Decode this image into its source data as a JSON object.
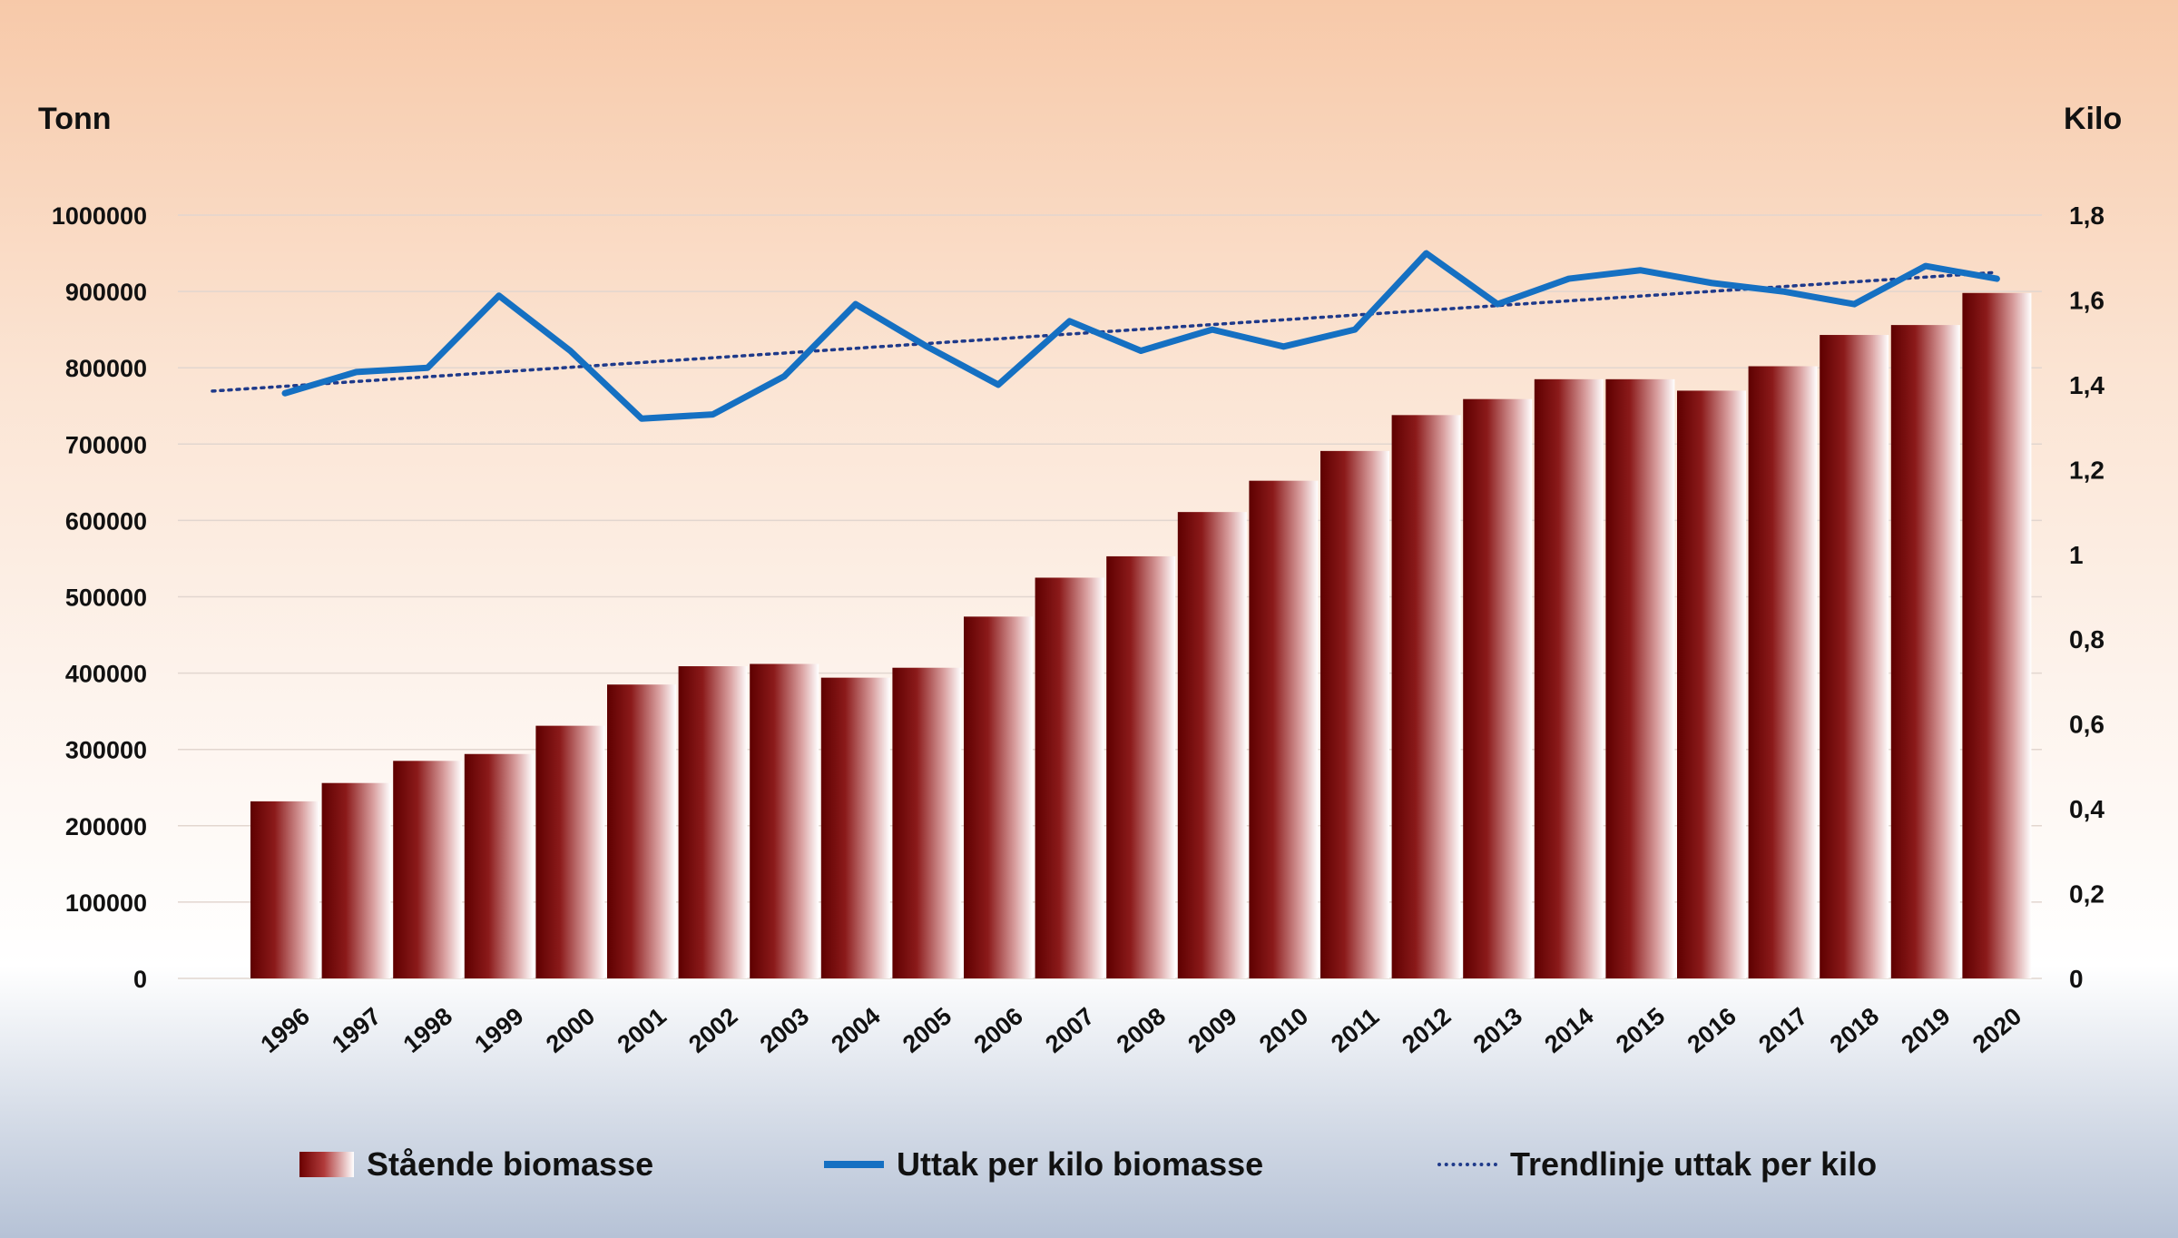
{
  "chart_data": {
    "type": "bar",
    "title": "",
    "ylabel_left": "Tonn",
    "ylabel_right": "Kilo",
    "xlabel": "",
    "categories": [
      "1996",
      "1997",
      "1998",
      "1999",
      "2000",
      "2001",
      "2002",
      "2003",
      "2004",
      "2005",
      "2006",
      "2007",
      "2008",
      "2009",
      "2010",
      "2011",
      "2012",
      "2013",
      "2014",
      "2015",
      "2016",
      "2017",
      "2018",
      "2019",
      "2020"
    ],
    "ylim_left": [
      0,
      1000000
    ],
    "ylim_right": [
      0,
      1.8
    ],
    "left_ticks": [
      "0",
      "100000",
      "200000",
      "300000",
      "400000",
      "500000",
      "600000",
      "700000",
      "800000",
      "900000",
      "1000000"
    ],
    "right_ticks": [
      "0",
      "0,2",
      "0,4",
      "0,6",
      "0,8",
      "1",
      "1,2",
      "1,4",
      "1,6",
      "1,8"
    ],
    "grid": true,
    "legend_position": "bottom",
    "series": [
      {
        "name": "Stående biomasse",
        "kind": "bar",
        "axis": "left",
        "color": "#8b1a1a",
        "values": [
          232000,
          256000,
          285000,
          294000,
          331000,
          385000,
          409000,
          412000,
          394000,
          407000,
          474000,
          525000,
          553000,
          611000,
          652000,
          691000,
          738000,
          759000,
          785000,
          785000,
          770000,
          802000,
          843000,
          856000,
          898000
        ]
      },
      {
        "name": "Uttak per kilo biomasse",
        "kind": "line",
        "axis": "right",
        "color": "#1570c2",
        "values": [
          1.38,
          1.43,
          1.44,
          1.61,
          1.48,
          1.32,
          1.33,
          1.42,
          1.59,
          1.49,
          1.4,
          1.55,
          1.48,
          1.53,
          1.49,
          1.53,
          1.71,
          1.59,
          1.65,
          1.67,
          1.64,
          1.62,
          1.59,
          1.68,
          1.65
        ]
      },
      {
        "name": "Trendlinje uttak per kilo",
        "kind": "trend",
        "axis": "right",
        "color": "#1f3a8a",
        "start": 1.385,
        "end": 1.665
      }
    ]
  }
}
